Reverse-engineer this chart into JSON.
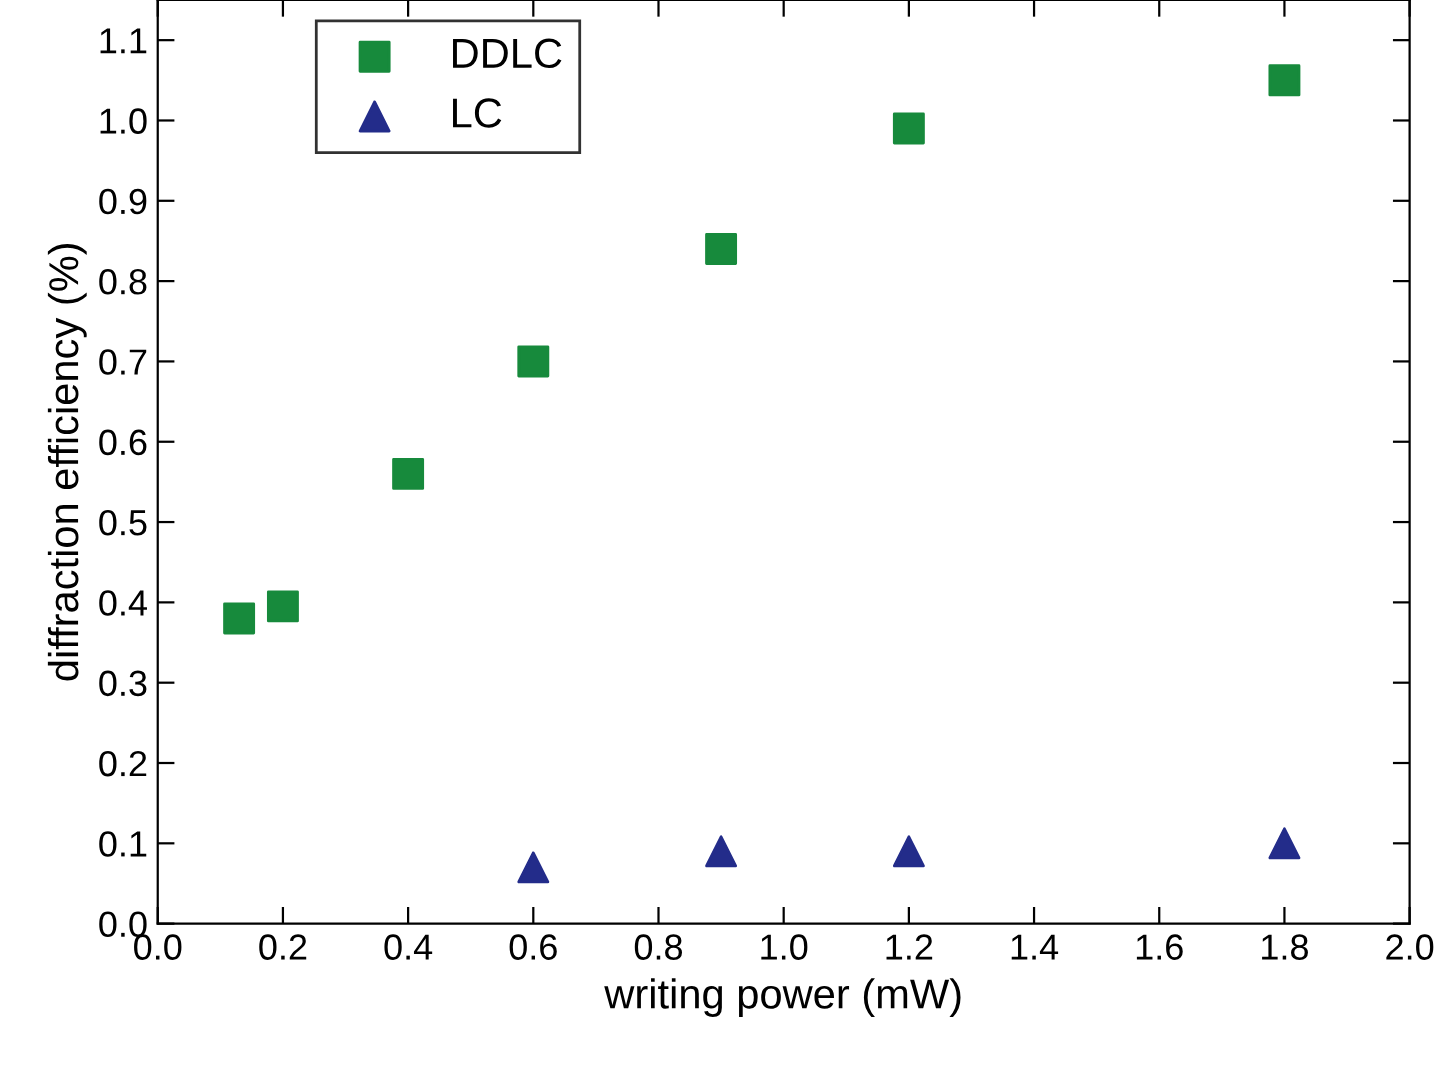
{
  "chart_data": {
    "type": "scatter",
    "xlabel": "writing power (mW)",
    "ylabel": "diffraction efficiency (%)",
    "series": [
      {
        "name": "DDLC",
        "color": "#178a3c",
        "marker": "square",
        "x": [
          0.13,
          0.2,
          0.4,
          0.6,
          0.9,
          1.2,
          1.8
        ],
        "values": [
          0.38,
          0.395,
          0.56,
          0.7,
          0.84,
          0.99,
          1.05
        ]
      },
      {
        "name": "LC",
        "color": "#232c8a",
        "marker": "triangle",
        "x": [
          0.6,
          0.9,
          1.2,
          1.8
        ],
        "values": [
          0.07,
          0.09,
          0.09,
          0.1
        ]
      }
    ],
    "xlim": [
      0.0,
      2.0
    ],
    "ylim": [
      0.0,
      1.15
    ],
    "xticks": [
      {
        "value": 0,
        "label": "0.0"
      },
      0.2,
      0.4,
      0.6,
      0.8,
      {
        "value": 1,
        "label": "1.0"
      },
      1.2,
      1.4,
      1.6,
      1.8,
      {
        "value": 2,
        "label": "2.0"
      }
    ],
    "yticks": [
      {
        "value": 0,
        "label": "0.0"
      },
      0.1,
      0.2,
      0.3,
      0.4,
      0.5,
      0.6,
      0.7,
      0.8,
      0.9,
      {
        "value": 1,
        "label": "1.0"
      },
      1.1
    ],
    "grid": false,
    "legend": "top left"
  }
}
